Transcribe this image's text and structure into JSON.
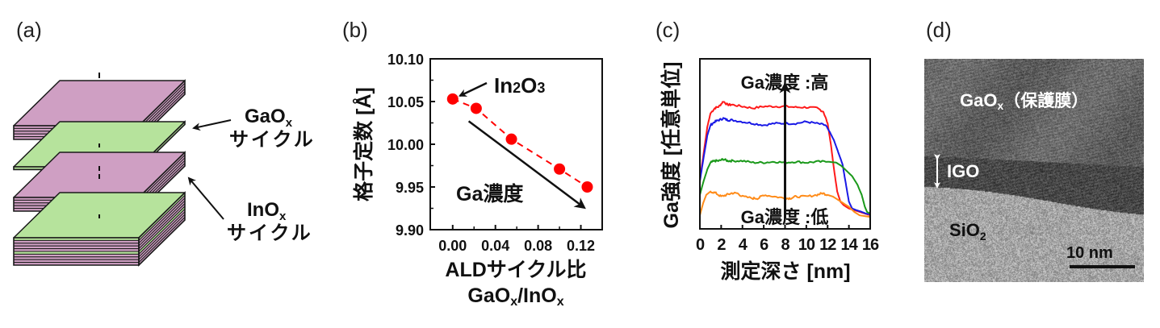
{
  "figure": {
    "panels": {
      "a": {
        "label": "(a)",
        "colors": {
          "inox_layer": "#CF9FC3",
          "gaox_layer": "#B6E39C",
          "edge": "#1a1a1a"
        },
        "annotations": [
          {
            "name": "GaOx",
            "main": "GaO",
            "sub": "x",
            "line2": "サイクル"
          },
          {
            "name": "InOx",
            "main": "InO",
            "sub": "x",
            "line2": "サイクル"
          }
        ]
      },
      "b": {
        "label": "(b)"
      },
      "c": {
        "label": "(c)"
      },
      "d": {
        "label": "(d)",
        "labels": {
          "gaox_main": "GaO",
          "gaox_sub": "x",
          "gaox_suffix": "（保護膜）",
          "igo": "IGO",
          "sio2_main": "SiO",
          "sio2_sub": "2",
          "scale_bar": "10 nm"
        }
      }
    }
  },
  "chart_data": [
    {
      "panel": "b",
      "type": "scatter",
      "title": "",
      "xlabel_line1": "ALDサイクル比",
      "xlabel_line2_parts": [
        {
          "t": "GaO",
          "sub": false
        },
        {
          "t": "x",
          "sub": true
        },
        {
          "t": "/InO",
          "sub": false
        },
        {
          "t": "x",
          "sub": true
        }
      ],
      "ylabel": "格子定数 [Å]",
      "xlim": [
        -0.021,
        0.14
      ],
      "ylim": [
        9.9,
        10.1
      ],
      "xticks": [
        0.0,
        0.04,
        0.08,
        0.12
      ],
      "xtick_labels": [
        "0.00",
        "0.04",
        "0.08",
        "0.12"
      ],
      "xminor": [
        0.02,
        0.06,
        0.1
      ],
      "yticks": [
        9.9,
        9.95,
        10.0,
        10.05,
        10.1
      ],
      "ytick_labels": [
        "9.90",
        "9.95",
        "10.00",
        "10.05",
        "10.10"
      ],
      "yminor": [
        9.925,
        9.975,
        10.025,
        10.075
      ],
      "grid": false,
      "series": [
        {
          "name": "lattice-constant",
          "color": "#FF0000",
          "line": "dashed",
          "x": [
            0.0,
            0.022,
            0.055,
            0.1,
            0.126
          ],
          "y": [
            10.053,
            10.042,
            10.006,
            9.971,
            9.95
          ]
        }
      ],
      "annotations": [
        {
          "kind": "label-arrow",
          "text_main": "In",
          "text_sub1": "2",
          "text_mid": "O",
          "text_sub2": "3",
          "points_to": [
            0.0,
            10.053
          ]
        },
        {
          "kind": "trend-arrow",
          "text": "Ga濃度",
          "from": [
            0.015,
            10.027
          ],
          "to": [
            0.123,
            9.926
          ]
        }
      ]
    },
    {
      "panel": "c",
      "type": "line",
      "title": "",
      "xlabel": "測定深さ [nm]",
      "ylabel": "Ga強度 [任意単位]",
      "xlim": [
        0,
        16
      ],
      "ylim": [
        0,
        1
      ],
      "xticks": [
        0,
        2,
        4,
        6,
        8,
        10,
        12,
        14,
        16
      ],
      "xtick_labels": [
        "0",
        "2",
        "4",
        "6",
        "8",
        "10",
        "12",
        "14",
        "16"
      ],
      "yticks": [],
      "grid": false,
      "series": [
        {
          "name": "highest-Ga",
          "color": "#FF1A1A",
          "x": [
            0,
            0.3,
            0.7,
            1.0,
            1.4,
            1.8,
            2.2,
            2.6,
            3.0,
            4.0,
            5.0,
            6.0,
            7.0,
            8.0,
            9.0,
            10.0,
            11.0,
            11.6,
            12.0,
            12.3,
            12.6,
            12.9,
            13.2,
            13.5,
            14.0,
            14.5,
            15.0,
            15.5,
            16.0
          ],
          "y": [
            0.29,
            0.42,
            0.6,
            0.68,
            0.71,
            0.72,
            0.75,
            0.73,
            0.73,
            0.72,
            0.71,
            0.72,
            0.72,
            0.72,
            0.715,
            0.715,
            0.71,
            0.69,
            0.62,
            0.5,
            0.35,
            0.22,
            0.16,
            0.14,
            0.12,
            0.11,
            0.1,
            0.09,
            0.08
          ]
        },
        {
          "name": "high-Ga",
          "color": "#1A1AE6",
          "x": [
            0,
            0.3,
            0.7,
            1.0,
            1.4,
            1.8,
            2.2,
            2.6,
            3.0,
            4.0,
            5.0,
            6.0,
            7.0,
            8.0,
            9.0,
            10.0,
            11.0,
            11.8,
            12.2,
            12.6,
            13.0,
            13.4,
            13.7,
            14.0,
            14.3,
            14.7,
            15.2,
            15.6,
            16.0
          ],
          "y": [
            0.28,
            0.4,
            0.55,
            0.61,
            0.63,
            0.64,
            0.65,
            0.64,
            0.64,
            0.63,
            0.62,
            0.61,
            0.62,
            0.62,
            0.62,
            0.63,
            0.62,
            0.61,
            0.57,
            0.52,
            0.45,
            0.38,
            0.27,
            0.16,
            0.12,
            0.11,
            0.1,
            0.09,
            0.085
          ]
        },
        {
          "name": "mid-Ga",
          "color": "#1A991A",
          "x": [
            0,
            0.3,
            0.7,
            1.0,
            1.4,
            1.8,
            2.2,
            2.6,
            3.0,
            4.0,
            5.0,
            6.0,
            7.0,
            8.0,
            9.0,
            10.0,
            11.0,
            12.0,
            12.8,
            13.3,
            13.8,
            14.3,
            14.8,
            15.2,
            15.5,
            15.7,
            16.0
          ],
          "y": [
            0.2,
            0.27,
            0.35,
            0.39,
            0.4,
            0.4,
            0.41,
            0.4,
            0.4,
            0.4,
            0.39,
            0.39,
            0.395,
            0.39,
            0.395,
            0.39,
            0.395,
            0.395,
            0.39,
            0.37,
            0.34,
            0.31,
            0.26,
            0.2,
            0.13,
            0.1,
            0.09
          ]
        },
        {
          "name": "low-Ga",
          "color": "#FF8C1A",
          "x": [
            0,
            0.3,
            0.6,
            1.0,
            1.5,
            2.0,
            2.5,
            3.0,
            3.5,
            4.0,
            5.0,
            5.5,
            6.0,
            7.0,
            8.0,
            8.5,
            9.0,
            10.0,
            11.0,
            11.5,
            12.0,
            12.5,
            13.0,
            13.5,
            14.0,
            14.5,
            15.0,
            15.5,
            16.0
          ],
          "y": [
            0.08,
            0.15,
            0.2,
            0.22,
            0.21,
            0.19,
            0.2,
            0.21,
            0.21,
            0.19,
            0.18,
            0.18,
            0.2,
            0.19,
            0.18,
            0.18,
            0.19,
            0.19,
            0.2,
            0.21,
            0.2,
            0.19,
            0.17,
            0.15,
            0.13,
            0.1,
            0.08,
            0.075,
            0.07
          ]
        }
      ],
      "annotations": [
        {
          "kind": "text",
          "text": "Ga濃度 :高",
          "position": "top-center"
        },
        {
          "kind": "text",
          "text": "Ga濃度 :低",
          "position": "bottom-center"
        },
        {
          "kind": "arrow",
          "from": [
            8,
            0.06
          ],
          "to": [
            8,
            0.85
          ],
          "meaning": "increasing Ga concentration"
        }
      ]
    }
  ]
}
